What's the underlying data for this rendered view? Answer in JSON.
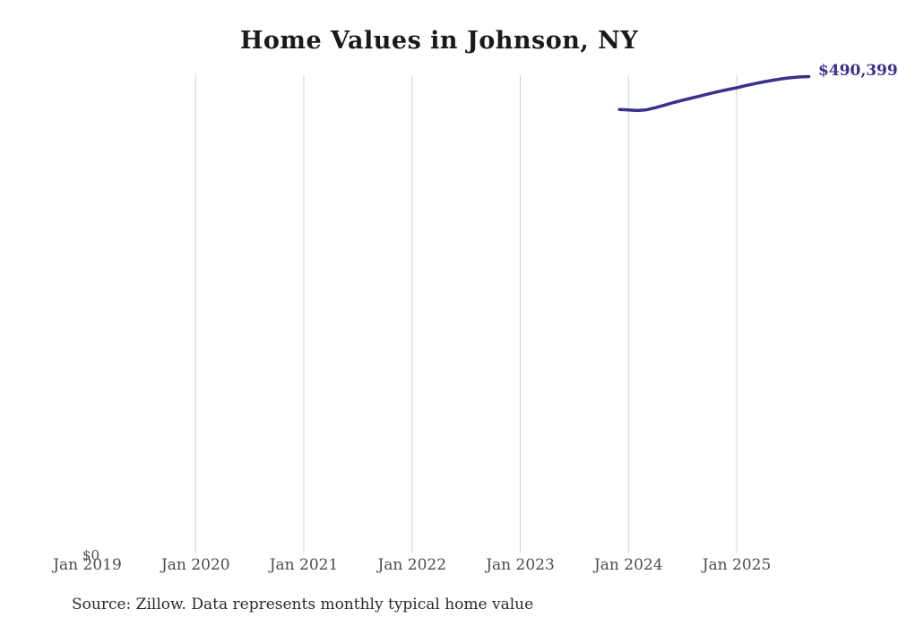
{
  "title": "Home Values in Johnson, NY",
  "source_note": "Source: Zillow. Data represents monthly typical home value",
  "end_label": "$490,399",
  "y_axis_zero_label": "$0",
  "colors": {
    "line": "#39318c",
    "end_label_text": "#39318c",
    "gridline": "#d0d0d0",
    "tick_text": "#4d4d4d",
    "title_text": "#1a1a1a",
    "source_text": "#2b2b2b",
    "background": "#ffffff"
  },
  "chart_data": {
    "type": "line",
    "title": "Home Values in Johnson, NY",
    "xlabel": "",
    "ylabel": "",
    "unit": "USD",
    "legend": "none",
    "grid": "vertical-only",
    "x_tick_labels": [
      "Jan 2019",
      "Jan 2020",
      "Jan 2021",
      "Jan 2022",
      "Jan 2023",
      "Jan 2024",
      "Jan 2025"
    ],
    "x_gridlines": [
      "Jan 2020",
      "Jan 2021",
      "Jan 2022",
      "Jan 2023",
      "Jan 2024",
      "Jan 2025"
    ],
    "y_axis": {
      "min": 0,
      "min_label": "$0"
    },
    "x_range": [
      "Jan 2019",
      "Sep 2025"
    ],
    "series": [
      {
        "name": "Monthly typical home value",
        "x": [
          "Dec 2023",
          "Jan 2024",
          "Feb 2024",
          "Mar 2024",
          "Apr 2024",
          "May 2024",
          "Jun 2024",
          "Jul 2024",
          "Aug 2024",
          "Sep 2024",
          "Oct 2024",
          "Nov 2024",
          "Dec 2024",
          "Jan 2025",
          "Feb 2025",
          "Mar 2025",
          "Apr 2025",
          "May 2025",
          "Jun 2025",
          "Jul 2025",
          "Aug 2025",
          "Sep 2025"
        ],
        "values": [
          456500,
          456000,
          455400,
          456200,
          458400,
          461000,
          463600,
          466000,
          468300,
          470500,
          472800,
          475000,
          477000,
          478900,
          481100,
          483100,
          485000,
          486600,
          488100,
          489200,
          490000,
          490399
        ],
        "last_value_label": "$490,399"
      }
    ]
  }
}
